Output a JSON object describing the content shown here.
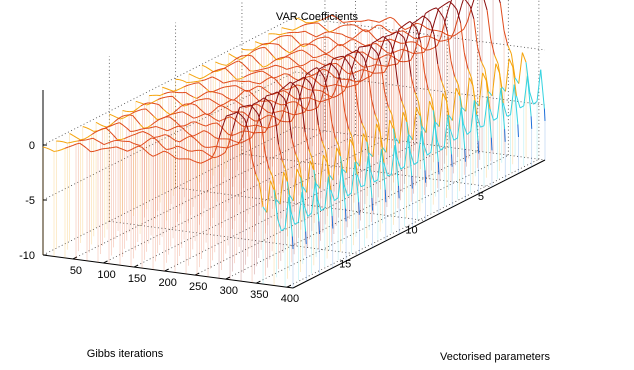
{
  "chart_data": {
    "type": "3d-waterfall",
    "title": "VAR Coefficients",
    "xlabel": "Vectorised parameters",
    "ylabel": "Gibbs iterations",
    "zlabel": "",
    "xlim": [
      1,
      410
    ],
    "ylim": [
      1,
      20
    ],
    "zlim": [
      -10,
      5
    ],
    "x_ticks": [
      50,
      100,
      150,
      200,
      250,
      300,
      350,
      400
    ],
    "y_ticks": [
      5,
      10,
      15
    ],
    "z_ticks": [
      -10,
      -5,
      0
    ],
    "grid": true,
    "colormap": [
      "#0a1a8c",
      "#1e6fd9",
      "#34d3e0",
      "#f5a30a",
      "#e04a1a",
      "#8a0c0c"
    ],
    "num_iterations": 20,
    "profile": {
      "x": [
        1,
        20,
        40,
        60,
        80,
        100,
        120,
        140,
        160,
        180,
        200,
        220,
        240,
        260,
        280,
        300,
        320,
        335,
        345,
        355,
        365,
        375,
        385,
        395,
        405,
        410
      ],
      "z": [
        -0.3,
        -0.5,
        0.2,
        0.6,
        -0.2,
        0.5,
        0.8,
        0.3,
        1.1,
        0.4,
        0.9,
        0.2,
        0.6,
        0.3,
        0.8,
        4.8,
        5.5,
        4.6,
        0.3,
        -1.0,
        -4.5,
        0.5,
        -3.8,
        -5.5,
        -0.8,
        -6.5
      ]
    }
  }
}
